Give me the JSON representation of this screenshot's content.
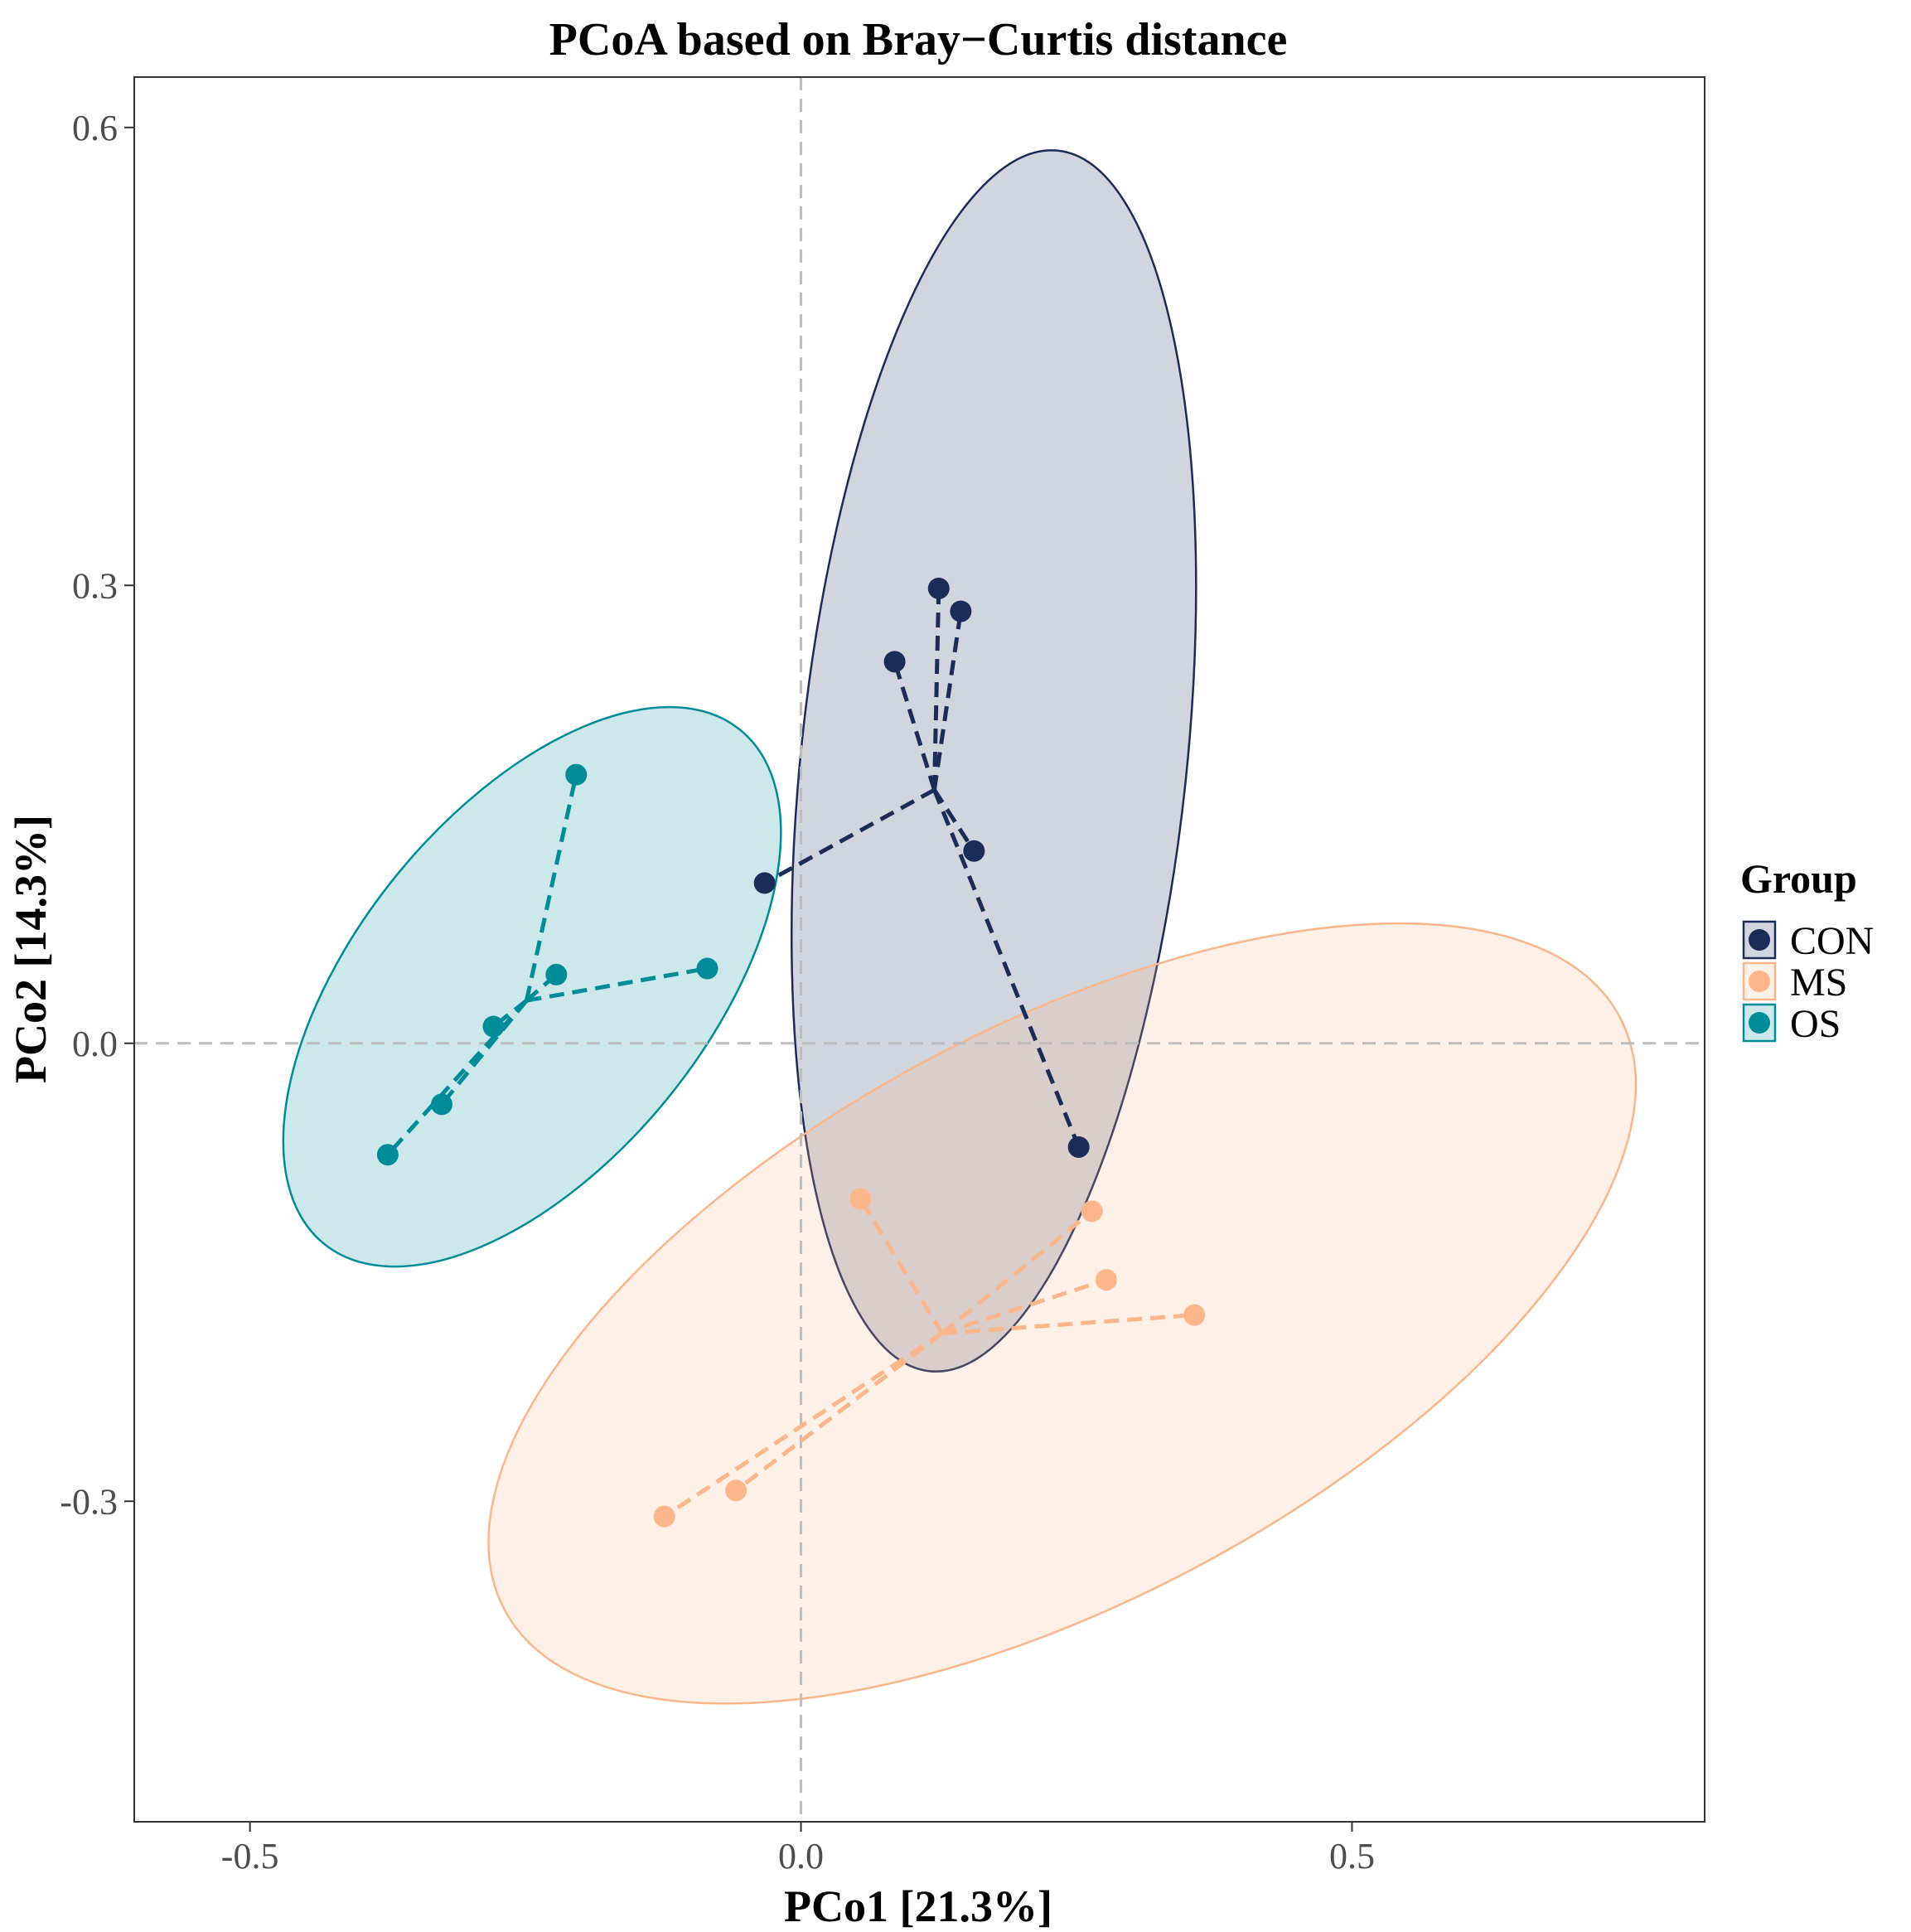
{
  "chart_data": {
    "type": "scatter",
    "title": "PCoA based on Bray−Curtis distance",
    "xlabel": "PCo1 [21.3%]",
    "ylabel": "PCo2 [14.3%]",
    "xlim": [
      -0.605,
      0.82
    ],
    "ylim": [
      -0.51,
      0.633
    ],
    "x_ticks": [
      -0.5,
      0.0,
      0.5
    ],
    "x_tick_labels": [
      "-0.5",
      "0.0",
      "0.5"
    ],
    "y_ticks": [
      -0.3,
      0.0,
      0.3,
      0.6
    ],
    "y_tick_labels": [
      "-0.3",
      "0.0",
      "0.3",
      "0.6"
    ],
    "reference_lines": {
      "x": 0,
      "y": 0
    },
    "grid": false,
    "legend": {
      "title": "Group",
      "position": "right"
    },
    "series": [
      {
        "name": "CON",
        "color": "#1a2c57",
        "ellipse_fill": "#1a2c57",
        "points": [
          {
            "x": 0.085,
            "y": 0.25
          },
          {
            "x": 0.125,
            "y": 0.298
          },
          {
            "x": 0.145,
            "y": 0.283
          },
          {
            "x": 0.157,
            "y": 0.126
          },
          {
            "x": -0.033,
            "y": 0.105
          },
          {
            "x": 0.252,
            "y": -0.068
          }
        ],
        "centroid": {
          "x": 0.121,
          "y": 0.166
        },
        "ellipse": {
          "cx": 0.175,
          "cy": 0.185,
          "rx": 0.175,
          "ry": 0.402,
          "angle_deg": -6.0
        }
      },
      {
        "name": "MS",
        "color": "#fdb68a",
        "ellipse_fill": "#fdb68a",
        "points": [
          {
            "x": 0.054,
            "y": -0.102
          },
          {
            "x": 0.264,
            "y": -0.11
          },
          {
            "x": 0.277,
            "y": -0.155
          },
          {
            "x": 0.357,
            "y": -0.178
          },
          {
            "x": -0.059,
            "y": -0.293
          },
          {
            "x": -0.124,
            "y": -0.31
          }
        ],
        "centroid": {
          "x": 0.128,
          "y": -0.19
        },
        "ellipse": {
          "cx": 0.237,
          "cy": -0.177,
          "rx": 0.573,
          "ry": 0.188,
          "angle_deg": 28.0
        }
      },
      {
        "name": "OS",
        "color": "#008b98",
        "ellipse_fill": "#008b98",
        "points": [
          {
            "x": -0.204,
            "y": 0.176
          },
          {
            "x": -0.085,
            "y": 0.049
          },
          {
            "x": -0.222,
            "y": 0.045
          },
          {
            "x": -0.279,
            "y": 0.011
          },
          {
            "x": -0.326,
            "y": -0.04
          },
          {
            "x": -0.375,
            "y": -0.073
          }
        ],
        "centroid": {
          "x": -0.249,
          "y": 0.028
        },
        "ellipse": {
          "cx": -0.244,
          "cy": 0.037,
          "rx": 0.3,
          "ry": 0.115,
          "angle_deg": 51.0
        }
      }
    ]
  }
}
